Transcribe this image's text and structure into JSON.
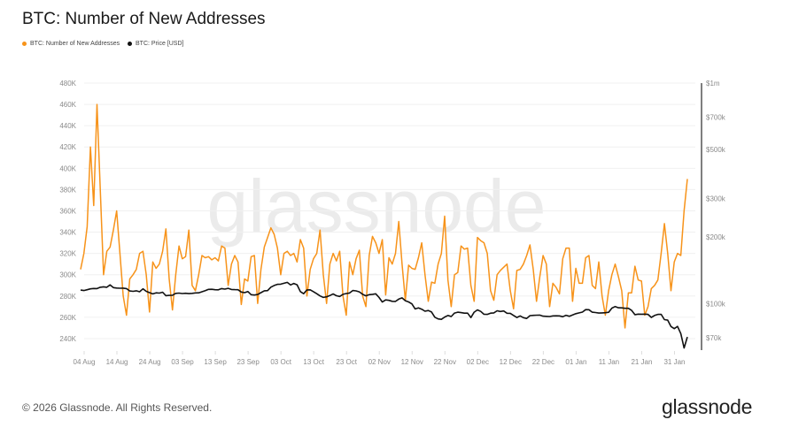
{
  "title": "BTC: Number of New Addresses",
  "legend": [
    {
      "label": "BTC: Number of New Addresses",
      "color": "#f7931a"
    },
    {
      "label": "BTC: Price [USD]",
      "color": "#111111"
    }
  ],
  "watermark": "glassnode",
  "footer": {
    "copyright": "© 2026 Glassnode. All Rights Reserved.",
    "logo": "glassnode"
  },
  "chart_data": {
    "type": "line",
    "title": "BTC: Number of New Addresses",
    "grid": true,
    "legend_position": "top-left",
    "x_ticks": [
      "04 Aug",
      "14 Aug",
      "24 Aug",
      "03 Sep",
      "13 Sep",
      "23 Sep",
      "03 Oct",
      "13 Oct",
      "23 Oct",
      "02 Nov",
      "12 Nov",
      "22 Nov",
      "02 Dec",
      "12 Dec",
      "22 Dec",
      "01 Jan",
      "11 Jan",
      "21 Jan",
      "31 Jan"
    ],
    "x_tick_dates": [
      "2025-08-04",
      "2025-08-14",
      "2025-08-24",
      "2025-09-03",
      "2025-09-13",
      "2025-09-23",
      "2025-10-03",
      "2025-10-13",
      "2025-10-23",
      "2025-11-02",
      "2025-11-12",
      "2025-11-22",
      "2025-12-02",
      "2025-12-12",
      "2025-12-22",
      "2026-01-01",
      "2026-01-11",
      "2026-01-21",
      "2026-01-31"
    ],
    "x_range": [
      "2025-08-04",
      "2026-02-05"
    ],
    "left_axis": {
      "ylim": [
        230000,
        480000
      ],
      "ticks": [
        240000,
        260000,
        280000,
        300000,
        320000,
        340000,
        360000,
        380000,
        400000,
        420000,
        440000,
        460000,
        480000
      ],
      "tick_labels": [
        "240K",
        "260K",
        "280K",
        "300K",
        "320K",
        "340K",
        "360K",
        "380K",
        "400K",
        "420K",
        "440K",
        "460K",
        "480K"
      ]
    },
    "right_axis": {
      "scale": "log",
      "ylim": [
        62000,
        1000000
      ],
      "ticks": [
        70000,
        100000,
        200000,
        300000,
        500000,
        700000,
        1000000
      ],
      "tick_labels": [
        "$70k",
        "$100k",
        "$200k",
        "$300k",
        "$500k",
        "$700k",
        "$1m"
      ]
    },
    "series": [
      {
        "name": "BTC: Number of New Addresses",
        "axis": "left",
        "color": "#f7931a",
        "values": [
          305000,
          320000,
          345000,
          420000,
          365000,
          460000,
          380000,
          300000,
          322000,
          326000,
          342000,
          360000,
          320000,
          280000,
          262000,
          296000,
          300000,
          305000,
          320000,
          322000,
          300000,
          265000,
          312000,
          306000,
          310000,
          322000,
          343000,
          296000,
          267000,
          300000,
          327000,
          315000,
          317000,
          342000,
          290000,
          285000,
          300000,
          318000,
          316000,
          317000,
          314000,
          316000,
          313000,
          327000,
          325000,
          290000,
          310000,
          318000,
          312000,
          272000,
          296000,
          294000,
          317000,
          318000,
          273000,
          305000,
          326000,
          335000,
          344000,
          338000,
          325000,
          300000,
          320000,
          322000,
          318000,
          320000,
          312000,
          333000,
          325000,
          280000,
          305000,
          315000,
          320000,
          342000,
          300000,
          273000,
          310000,
          320000,
          313000,
          322000,
          280000,
          262000,
          312000,
          300000,
          315000,
          323000,
          280000,
          270000,
          318000,
          336000,
          330000,
          320000,
          333000,
          281000,
          316000,
          310000,
          320000,
          350000,
          310000,
          276000,
          309000,
          306000,
          305000,
          316000,
          330000,
          300000,
          275000,
          293000,
          292000,
          310000,
          320000,
          355000,
          295000,
          270000,
          300000,
          302000,
          327000,
          324000,
          325000,
          290000,
          275000,
          335000,
          332000,
          330000,
          320000,
          285000,
          276000,
          300000,
          304000,
          307000,
          310000,
          285000,
          268000,
          304000,
          305000,
          310000,
          318000,
          328000,
          305000,
          275000,
          298000,
          318000,
          310000,
          270000,
          292000,
          288000,
          282000,
          315000,
          325000,
          325000,
          275000,
          306000,
          292000,
          292000,
          316000,
          318000,
          290000,
          287000,
          312000,
          280000,
          262000,
          285000,
          300000,
          310000,
          298000,
          285000,
          250000,
          283000,
          283000,
          308000,
          295000,
          294000,
          262000,
          270000,
          287000,
          290000,
          295000,
          320000,
          348000,
          320000,
          285000,
          312000,
          320000,
          318000,
          360000,
          390000
        ]
      },
      {
        "name": "BTC: Price [USD]",
        "axis": "right",
        "color": "#111111",
        "values": [
          115000,
          114500,
          115500,
          116500,
          117000,
          116800,
          118500,
          119000,
          118500,
          121500,
          118000,
          117500,
          117300,
          117400,
          116900,
          114000,
          113500,
          114200,
          113000,
          116500,
          113500,
          112000,
          110500,
          111800,
          111500,
          112500,
          108500,
          108800,
          109000,
          111200,
          111500,
          111000,
          111300,
          110900,
          111200,
          111700,
          111800,
          113000,
          114300,
          115900,
          116000,
          115500,
          115300,
          116800,
          116200,
          117200,
          115800,
          115600,
          115400,
          112700,
          112000,
          113300,
          109600,
          109200,
          109800,
          112000,
          114200,
          114400,
          118600,
          120700,
          122200,
          122400,
          123500,
          124700,
          121400,
          123300,
          121600,
          113200,
          110700,
          115200,
          115300,
          113100,
          110700,
          108200,
          106500,
          107200,
          108600,
          110500,
          108400,
          107600,
          110000,
          111000,
          111600,
          114500,
          114100,
          112900,
          110000,
          108300,
          109600,
          110000,
          110600,
          106500,
          101500,
          103800,
          103300,
          102300,
          102200,
          104700,
          106000,
          103000,
          101600,
          99600,
          94500,
          95500,
          94200,
          92200,
          92900,
          91500,
          86600,
          85100,
          84700,
          86800,
          88200,
          87300,
          90500,
          91300,
          90900,
          90400,
          90400,
          86300,
          91300,
          93500,
          92100,
          89300,
          89200,
          90400,
          90600,
          92700,
          92000,
          92500,
          90300,
          90200,
          88200,
          86400,
          87800,
          86200,
          85500,
          88100,
          88300,
          88500,
          88600,
          87600,
          87400,
          87300,
          87800,
          87900,
          87800,
          87100,
          88400,
          87500,
          88700,
          89900,
          90600,
          91400,
          93800,
          93700,
          91300,
          91000,
          90500,
          90600,
          90800,
          91200,
          95300,
          96900,
          95600,
          95500,
          95100,
          95100,
          93000,
          89000,
          89500,
          89400,
          89500,
          89200,
          86500,
          88200,
          89200,
          89300,
          84500,
          84000,
          78600,
          76900,
          78700,
          73000,
          62800,
          70500
        ]
      }
    ]
  }
}
